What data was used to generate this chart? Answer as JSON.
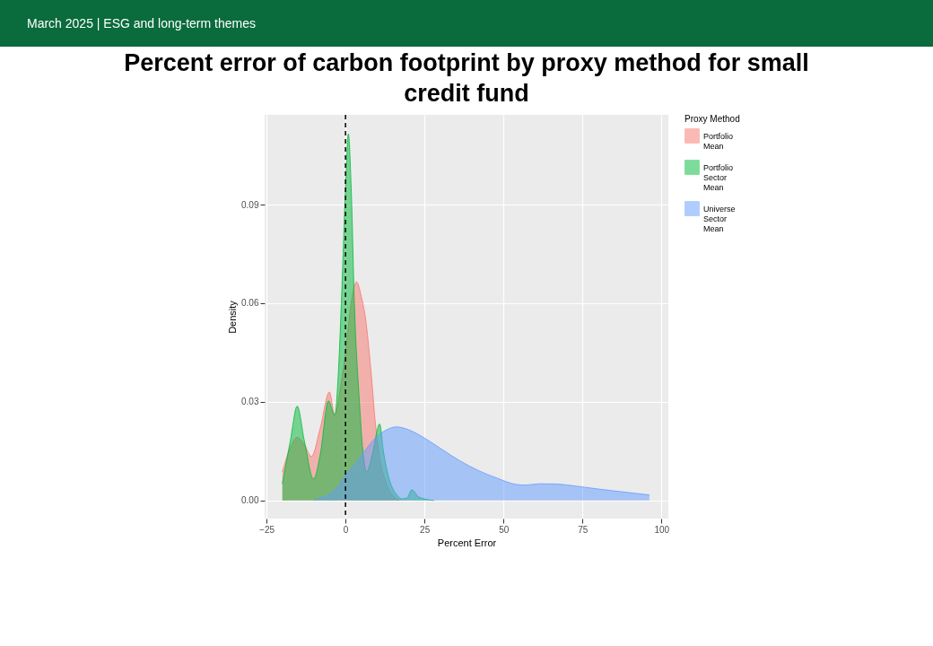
{
  "chart_data": {
    "type": "area",
    "title": "Percent error of carbon footprint by proxy method for small credit fund",
    "annotations": [
      "March 2025 | ESG and long-term themes"
    ],
    "xlabel": "Percent Error",
    "ylabel": "Density",
    "legend_title": "Proxy Method",
    "series": [
      {
        "name": "Portfolio Mean",
        "color": "#f8766d",
        "x": [
          -20,
          -17.5,
          -15.3,
          -13,
          -10.8,
          -8,
          -5.1,
          -3.4,
          -1.5,
          0,
          1.5,
          2.5,
          3.5,
          5,
          6.3,
          8,
          9.6,
          11,
          13,
          15,
          17
        ],
        "values": [
          0.0087,
          0.016,
          0.0192,
          0.017,
          0.0134,
          0.022,
          0.033,
          0.026,
          0.035,
          0.045,
          0.058,
          0.064,
          0.0665,
          0.062,
          0.0556,
          0.04,
          0.022,
          0.012,
          0.005,
          0.0015,
          0
        ]
      },
      {
        "name": "Portfolio Sector Mean",
        "color": "#00ba38",
        "x": [
          -20,
          -17.5,
          -15.3,
          -13,
          -10.1,
          -8,
          -5.4,
          -3.4,
          -2.2,
          -1.2,
          0,
          0.9,
          1.8,
          2.8,
          4.4,
          5.5,
          6.7,
          8.5,
          10.8,
          12,
          14,
          16,
          18,
          19.5,
          21,
          23,
          25,
          28
        ],
        "values": [
          0.0051,
          0.018,
          0.0287,
          0.018,
          0.0065,
          0.014,
          0.0303,
          0.026,
          0.04,
          0.063,
          0.095,
          0.1115,
          0.095,
          0.06,
          0.03,
          0.015,
          0.0087,
          0.014,
          0.0233,
          0.015,
          0.006,
          0.002,
          0.0005,
          0.0008,
          0.0033,
          0.0012,
          0.0005,
          0
        ]
      },
      {
        "name": "Universe Sector Mean",
        "color": "#619cff",
        "x": [
          -10,
          -8.7,
          -5,
          -2,
          0,
          3,
          6,
          10,
          13,
          16.1,
          20,
          25,
          30.6,
          36,
          41.9,
          48,
          54,
          57,
          61.5,
          67,
          72.8,
          80,
          88,
          96.2
        ],
        "values": [
          0,
          0.0005,
          0.002,
          0.0048,
          0.0078,
          0.011,
          0.015,
          0.0195,
          0.0215,
          0.0224,
          0.0215,
          0.019,
          0.0155,
          0.0122,
          0.0092,
          0.0068,
          0.0049,
          0.0047,
          0.0051,
          0.005,
          0.0044,
          0.0035,
          0.0026,
          0.0017
        ]
      }
    ],
    "xlim": [
      -25.6,
      102.2
    ],
    "xticks": [
      -25,
      0,
      25,
      50,
      75,
      100
    ],
    "ylim": [
      -0.0055,
      0.1173
    ],
    "yticks": [
      {
        "value": 0,
        "label": "0.00"
      },
      0.03,
      0.06,
      0.09
    ],
    "ref_lines": [
      {
        "axis": "x",
        "value": 0,
        "line_style": "dashed",
        "color": "#000000"
      }
    ],
    "grid": true,
    "legend": "right"
  }
}
